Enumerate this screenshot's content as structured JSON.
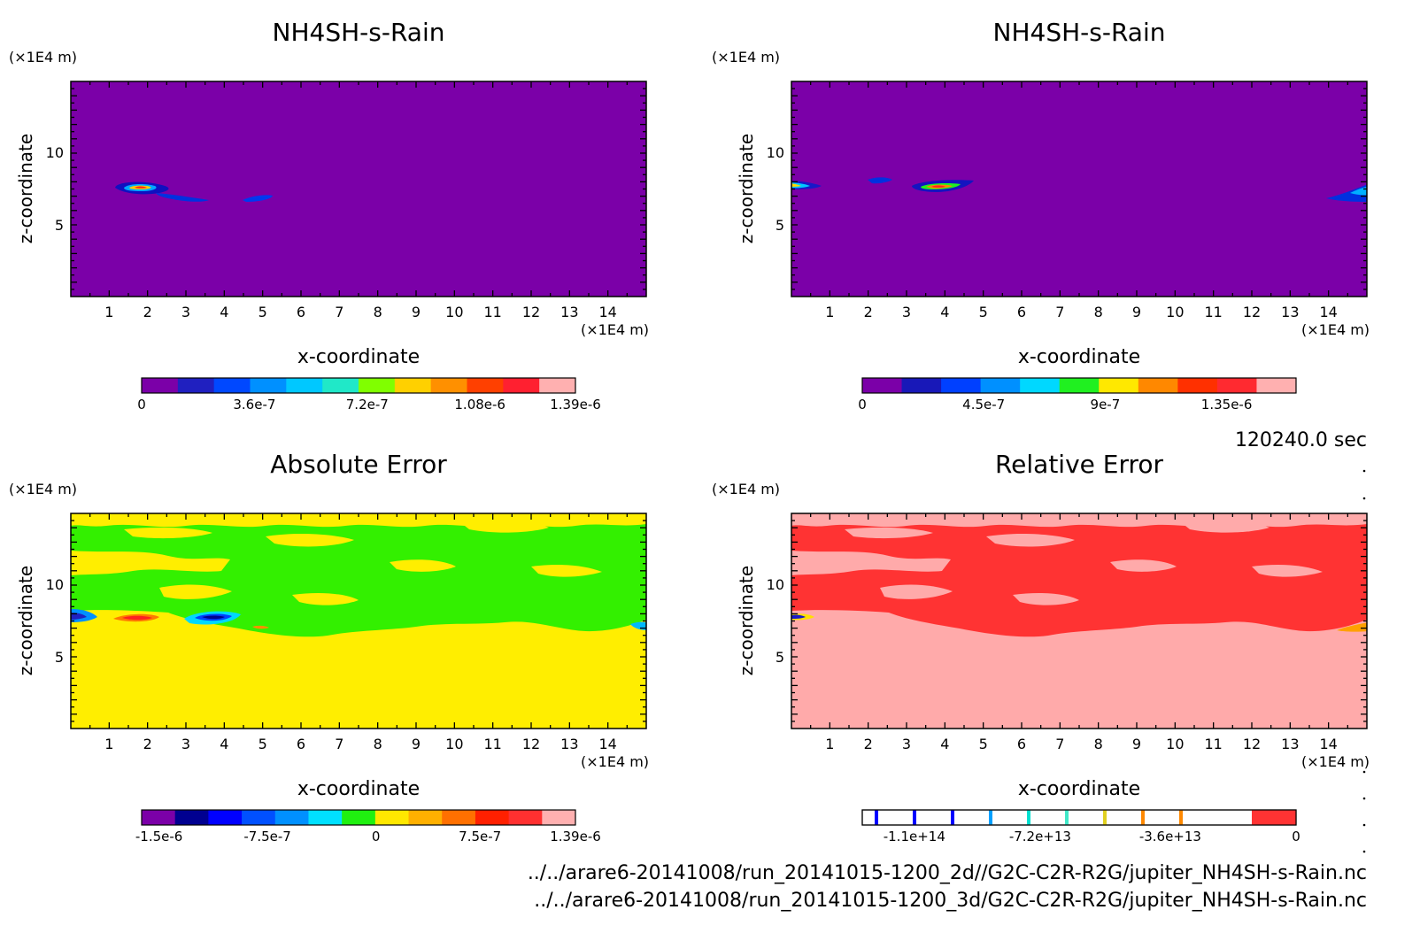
{
  "time_label": "120240.0 sec",
  "file_paths": [
    "../../arare6-20141008/run_20141015-1200_2d//G2C-C2R-R2G/jupiter_NH4SH-s-Rain.nc",
    "../../arare6-20141008/run_20141015-1200_3d/G2C-C2R-R2G/jupiter_NH4SH-s-Rain.nc"
  ],
  "colors": {
    "scale_1_39e6": [
      "#7b00a8",
      "#2020c0",
      "#0048ff",
      "#0090ff",
      "#00c8ff",
      "#20e8c8",
      "#80ff00",
      "#ffd000",
      "#ff9000",
      "#ff4000",
      "#ff2030",
      "#ffb0b0"
    ],
    "scale_1_35e6": [
      "#7b00a8",
      "#1818b8",
      "#0040ff",
      "#0090ff",
      "#00d8ff",
      "#20f020",
      "#ffe800",
      "#ff8800",
      "#ff3000",
      "#ff2a30",
      "#ffb0b0"
    ],
    "abs_scale": [
      "#7b00a8",
      "#000090",
      "#0000ff",
      "#0050ff",
      "#0090ff",
      "#00e0ff",
      "#20f010",
      "#ffe800",
      "#ffb000",
      "#ff7000",
      "#ff2000",
      "#ff3030",
      "#ffb0b0"
    ],
    "rel_error_fill": [
      "#ffffff",
      "#ff3333"
    ]
  },
  "chart_data": [
    {
      "type": "heatmap",
      "panel": "top-left",
      "title": "NH4SH-s-Rain",
      "xlabel": "x-coordinate",
      "ylabel": "z-coordinate",
      "x_unit": "(×1E4 m)",
      "y_unit": "(×1E4 m)",
      "xlim": [
        0,
        15
      ],
      "ylim": [
        0,
        15
      ],
      "x_ticks": [
        1,
        2,
        3,
        4,
        5,
        6,
        7,
        8,
        9,
        10,
        11,
        12,
        13,
        14
      ],
      "y_ticks": [
        5,
        10
      ],
      "background_level": 0,
      "colorbar_ticks": [
        "0",
        "3.6e-7",
        "7.2e-7",
        "1.08e-6",
        "1.39e-6"
      ],
      "colorbar_palette": "scale_1_39e6",
      "features": [
        {
          "desc": "max-core",
          "x": 1.8,
          "z": 7.6,
          "value": 1.39e-06
        },
        {
          "desc": "trail",
          "x": 3.0,
          "z": 7.0,
          "value": 3.6e-07
        },
        {
          "desc": "blob",
          "x": 4.7,
          "z": 6.8,
          "value": 2.4e-07
        }
      ]
    },
    {
      "type": "heatmap",
      "panel": "top-right",
      "title": "NH4SH-s-Rain",
      "xlabel": "x-coordinate",
      "ylabel": "z-coordinate",
      "x_unit": "(×1E4 m)",
      "y_unit": "(×1E4 m)",
      "xlim": [
        0,
        15
      ],
      "ylim": [
        0,
        15
      ],
      "x_ticks": [
        1,
        2,
        3,
        4,
        5,
        6,
        7,
        8,
        9,
        10,
        11,
        12,
        13,
        14
      ],
      "y_ticks": [
        5,
        10
      ],
      "background_level": 0,
      "colorbar_ticks": [
        "0",
        "4.5e-7",
        "9e-7",
        "1.35e-6"
      ],
      "colorbar_palette": "scale_1_35e6",
      "features": [
        {
          "desc": "edge-core",
          "x": 0.3,
          "z": 7.8,
          "value": 1.35e-06
        },
        {
          "desc": "small-blob",
          "x": 2.4,
          "z": 8.2,
          "value": 3e-07
        },
        {
          "desc": "max-core",
          "x": 3.9,
          "z": 7.6,
          "value": 1.35e-06
        },
        {
          "desc": "right-edge",
          "x": 14.7,
          "z": 7.0,
          "value": 4.5e-07
        }
      ]
    },
    {
      "type": "heatmap",
      "panel": "bottom-left",
      "title": "Absolute Error",
      "xlabel": "x-coordinate",
      "ylabel": "z-coordinate",
      "x_unit": "(×1E4 m)",
      "y_unit": "(×1E4 m)",
      "xlim": [
        0,
        15
      ],
      "ylim": [
        0,
        15
      ],
      "x_ticks": [
        1,
        2,
        3,
        4,
        5,
        6,
        7,
        8,
        9,
        10,
        11,
        12,
        13,
        14
      ],
      "y_ticks": [
        5,
        10
      ],
      "colorbar_ticks": [
        "-1.5e-6",
        "-7.5e-7",
        "0",
        "7.5e-7",
        "1.39e-6"
      ],
      "colorbar_palette": "abs_scale",
      "features": [
        {
          "desc": "positive-core",
          "x": 1.7,
          "z": 7.6,
          "value": 1.39e-06
        },
        {
          "desc": "negative-core",
          "x": 3.9,
          "z": 7.6,
          "value": -1.5e-06
        }
      ]
    },
    {
      "type": "heatmap",
      "panel": "bottom-right",
      "title": "Relative Error",
      "xlabel": "x-coordinate",
      "ylabel": "z-coordinate",
      "x_unit": "(×1E4 m)",
      "y_unit": "(×1E4 m)",
      "xlim": [
        0,
        15
      ],
      "ylim": [
        0,
        15
      ],
      "x_ticks": [
        1,
        2,
        3,
        4,
        5,
        6,
        7,
        8,
        9,
        10,
        11,
        12,
        13,
        14
      ],
      "y_ticks": [
        5,
        10
      ],
      "colorbar_ticks": [
        "-1.1e+14",
        "-7.2e+13",
        "-3.6e+13",
        "0"
      ],
      "colorbar_palette": "rel_error_fill",
      "features": []
    }
  ]
}
